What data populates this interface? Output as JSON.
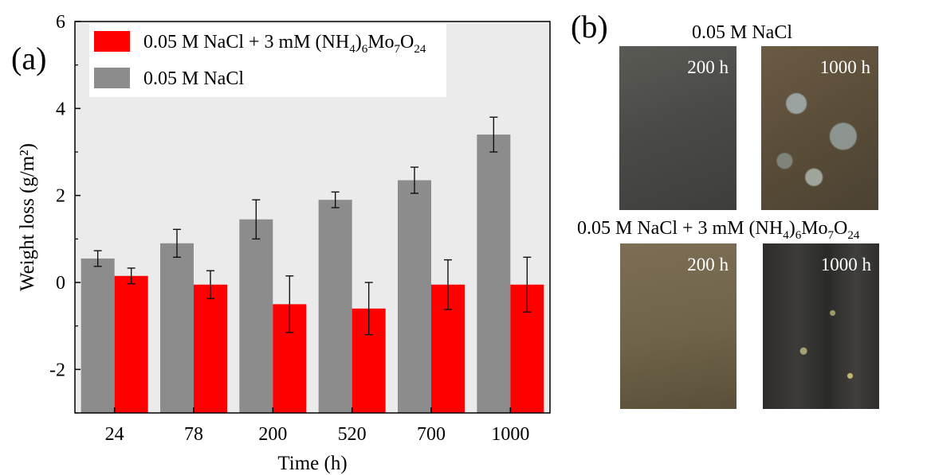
{
  "chart_data": {
    "type": "bar",
    "panel_label": "(a)",
    "categories": [
      "24",
      "78",
      "200",
      "520",
      "700",
      "1000"
    ],
    "series": [
      {
        "name": "0.05 M NaCl",
        "color": "#8c8c8c",
        "values": [
          0.55,
          0.9,
          1.45,
          1.9,
          2.35,
          3.4
        ],
        "errors": [
          0.18,
          0.32,
          0.45,
          0.18,
          0.3,
          0.4
        ]
      },
      {
        "name": "0.05 M NaCl + 3 mM (NH4)6Mo7O24",
        "color": "#ff0000",
        "values": [
          0.15,
          -0.05,
          -0.5,
          -0.6,
          -0.05,
          -0.05
        ],
        "errors": [
          0.18,
          0.32,
          0.65,
          0.6,
          0.57,
          0.63
        ]
      }
    ],
    "xlabel": "Time (h)",
    "ylabel": "Weight loss (g/m²)",
    "ylim": [
      -3,
      6
    ],
    "yticks": [
      "-2",
      "0",
      "2",
      "4",
      "6"
    ],
    "legend": {
      "placement": "top-left",
      "entries": [
        {
          "main": "0.05 M NaCl + 3 mM (NH",
          "sub1": "4",
          "mid": ")",
          "sub2": "6",
          "mid2": "Mo",
          "sub3": "7",
          "mid3": "O",
          "sub4": "24"
        },
        {
          "main": "0.05 M NaCl"
        }
      ]
    }
  },
  "panel_b": {
    "label": "(b)",
    "top_caption": "0.05 M NaCl",
    "bottom_caption": {
      "main": "0.05 M NaCl + 3 mM (NH",
      "sub1": "4",
      "mid": ")",
      "sub2": "6",
      "mid2": "Mo",
      "sub3": "7",
      "mid3": "O",
      "sub4": "24"
    },
    "photos": [
      {
        "label": "200 h"
      },
      {
        "label": "1000 h"
      },
      {
        "label": "200 h"
      },
      {
        "label": "1000 h"
      }
    ]
  }
}
